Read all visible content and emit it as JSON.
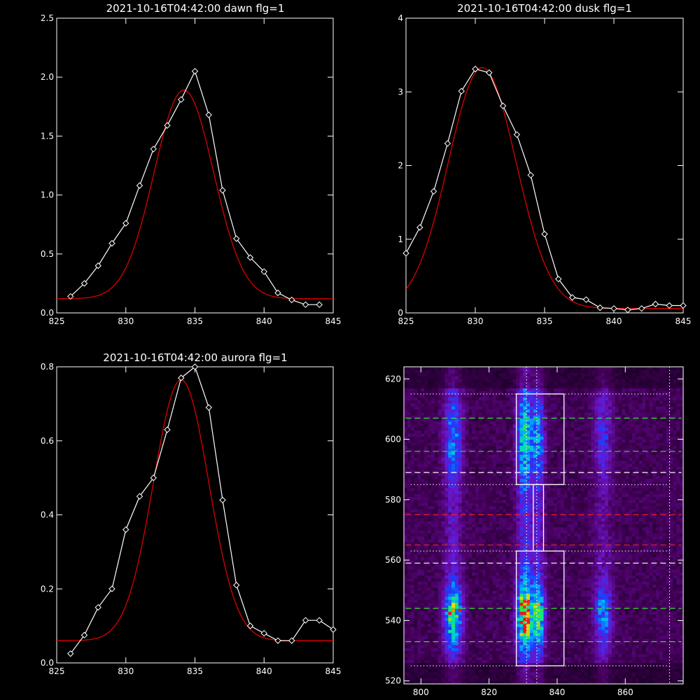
{
  "colors": {
    "background": "#000000",
    "axes": "#ffffff",
    "data_line": "#ffffff",
    "fit_line": "#dd0000",
    "box": "#ffffff",
    "dash_green": "#33dd33",
    "dash_red": "#ee2222",
    "dash_white": "#ffffff"
  },
  "chart_data": [
    {
      "id": "dawn",
      "type": "line",
      "title": "2021-10-16T04:42:00 dawn flg=1",
      "xlim": [
        825,
        845
      ],
      "ylim": [
        0,
        2.5
      ],
      "xticks": [
        825,
        830,
        835,
        840,
        845
      ],
      "xtick_labels": [
        "825",
        "830",
        "835",
        "840",
        "845"
      ],
      "yticks": [
        0,
        0.5,
        1.0,
        1.5,
        2.0,
        2.5
      ],
      "ytick_labels": [
        "0.0",
        "0.5",
        "1.0",
        "1.5",
        "2.0",
        "2.5"
      ],
      "series": [
        {
          "marker": "diamond",
          "x": [
            826,
            827,
            828,
            829,
            830,
            831,
            832,
            833,
            834,
            835,
            836,
            837,
            838,
            839,
            840,
            841,
            842,
            843,
            844
          ],
          "y": [
            0.14,
            0.25,
            0.4,
            0.59,
            0.76,
            1.08,
            1.39,
            1.59,
            1.81,
            2.05,
            1.68,
            1.04,
            0.63,
            0.47,
            0.35,
            0.17,
            0.11,
            0.07,
            0.07
          ]
        },
        {
          "style": "fit",
          "model": "gaussian",
          "center": 834.2,
          "sigma": 2.15,
          "amplitude": 1.77,
          "offset": 0.12
        }
      ]
    },
    {
      "id": "dusk",
      "type": "line",
      "title": "2021-10-16T04:42:00 dusk flg=1",
      "xlim": [
        825,
        845
      ],
      "ylim": [
        0,
        4
      ],
      "xticks": [
        825,
        830,
        835,
        840,
        845
      ],
      "xtick_labels": [
        "825",
        "830",
        "835",
        "840",
        "845"
      ],
      "yticks": [
        0,
        1,
        2,
        3,
        4
      ],
      "ytick_labels": [
        "0",
        "1",
        "2",
        "3",
        "4"
      ],
      "series": [
        {
          "marker": "diamond",
          "x": [
            825,
            826,
            827,
            828,
            829,
            830,
            831,
            832,
            833,
            834,
            835,
            836,
            837,
            838,
            839,
            840,
            841,
            842,
            843,
            844,
            845
          ],
          "y": [
            0.81,
            1.16,
            1.65,
            2.3,
            3.01,
            3.31,
            3.26,
            2.81,
            2.42,
            1.87,
            1.07,
            0.46,
            0.21,
            0.18,
            0.07,
            0.06,
            0.04,
            0.06,
            0.12,
            0.1,
            0.1
          ]
        },
        {
          "style": "fit",
          "model": "gaussian",
          "center": 830.5,
          "sigma": 2.45,
          "amplitude": 3.27,
          "offset": 0.06
        }
      ]
    },
    {
      "id": "aurora",
      "type": "line",
      "title": "2021-10-16T04:42:00 aurora flg=1",
      "xlim": [
        825,
        845
      ],
      "ylim": [
        0,
        0.8
      ],
      "xticks": [
        825,
        830,
        835,
        840,
        845
      ],
      "xtick_labels": [
        "825",
        "830",
        "835",
        "840",
        "845"
      ],
      "yticks": [
        0,
        0.2,
        0.4,
        0.6,
        0.8
      ],
      "ytick_labels": [
        "0.0",
        "0.2",
        "0.4",
        "0.6",
        "0.8"
      ],
      "series": [
        {
          "marker": "diamond",
          "x": [
            826,
            827,
            828,
            829,
            830,
            831,
            832,
            833,
            834,
            835,
            836,
            837,
            838,
            839,
            840,
            841,
            842,
            843,
            844,
            845
          ],
          "y": [
            0.025,
            0.075,
            0.15,
            0.2,
            0.36,
            0.45,
            0.5,
            0.63,
            0.77,
            0.8,
            0.69,
            0.44,
            0.21,
            0.1,
            0.08,
            0.06,
            0.06,
            0.115,
            0.115,
            0.09
          ]
        },
        {
          "style": "fit",
          "model": "gaussian",
          "center": 834.0,
          "sigma": 2.0,
          "amplitude": 0.705,
          "offset": 0.06
        }
      ]
    },
    {
      "id": "image",
      "type": "heatmap",
      "xlim": [
        795,
        877
      ],
      "ylim": [
        519,
        624
      ],
      "xticks": [
        800,
        820,
        840,
        860
      ],
      "xtick_labels": [
        "800",
        "820",
        "840",
        "860"
      ],
      "yticks": [
        520,
        540,
        560,
        580,
        600,
        620
      ],
      "ytick_labels": [
        "520",
        "540",
        "560",
        "580",
        "600",
        "620"
      ],
      "colormap": "rainbow",
      "emission_columns": [
        {
          "x": 809.5,
          "width": 1.8,
          "strength": 0.55
        },
        {
          "x": 830.5,
          "width": 1.6,
          "strength": 0.8
        },
        {
          "x": 834.5,
          "width": 1.3,
          "strength": 0.55
        },
        {
          "x": 853.5,
          "width": 1.8,
          "strength": 0.35
        }
      ],
      "brightness_rows": [
        {
          "y": 542,
          "width": 7,
          "strength": 1.0
        },
        {
          "y": 600,
          "width": 9,
          "strength": 0.5
        }
      ],
      "bright_spots": [
        {
          "x": 808,
          "y": 542
        },
        {
          "x": 811,
          "y": 543
        },
        {
          "x": 829,
          "y": 545
        },
        {
          "x": 831,
          "y": 543
        },
        {
          "x": 830,
          "y": 540
        }
      ],
      "boxes": [
        {
          "x0": 828,
          "x1": 842,
          "y0": 525,
          "y1": 563
        },
        {
          "x0": 828,
          "x1": 842,
          "y0": 585,
          "y1": 615
        },
        {
          "x0": 833,
          "x1": 836,
          "y0": 563,
          "y1": 585
        }
      ],
      "vertical_dotted": [
        831,
        834,
        873
      ],
      "dotted_rows": [
        615,
        585,
        563,
        525
      ],
      "dashed_rows": [
        {
          "y": 607,
          "color": "green"
        },
        {
          "y": 596,
          "color": "green"
        },
        {
          "y": 589,
          "color": "white"
        },
        {
          "y": 575,
          "color": "red"
        },
        {
          "y": 565,
          "color": "red"
        },
        {
          "y": 559,
          "color": "white"
        },
        {
          "y": 544,
          "color": "green"
        },
        {
          "y": 533,
          "color": "green"
        }
      ]
    }
  ]
}
